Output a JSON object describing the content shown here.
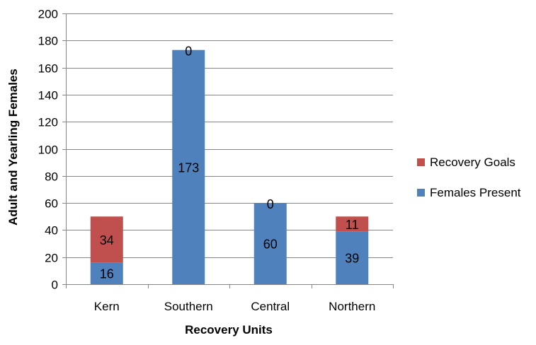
{
  "chart_data": {
    "type": "bar",
    "stacked": true,
    "title": "",
    "xlabel": "Recovery Units",
    "ylabel": "Adult and Yearling Females",
    "categories": [
      "Kern",
      "Southern",
      "Central",
      "Northern"
    ],
    "series": [
      {
        "name": "Females Present",
        "color": "#4f81bd",
        "values": [
          16,
          173,
          60,
          39
        ]
      },
      {
        "name": "Recovery Goals",
        "color": "#c0504d",
        "values": [
          34,
          0,
          0,
          11
        ]
      }
    ],
    "ylim": [
      0,
      200
    ],
    "yticks": [
      0,
      20,
      40,
      60,
      80,
      100,
      120,
      140,
      160,
      180,
      200
    ],
    "grid": true,
    "legend_position": "right"
  }
}
